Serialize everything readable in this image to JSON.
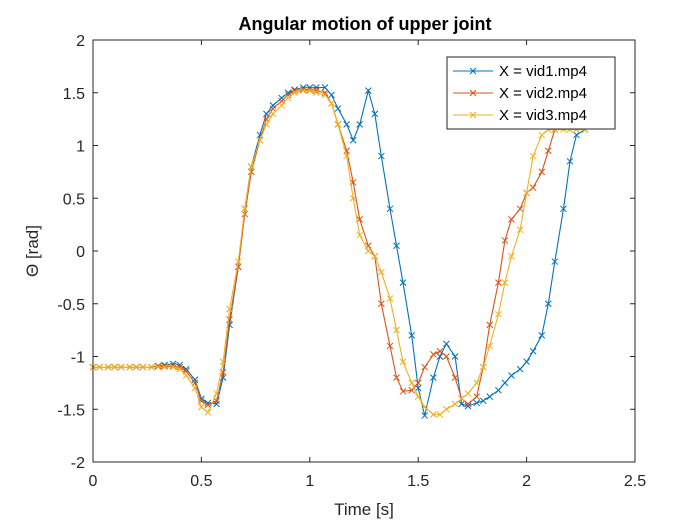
{
  "chart_data": {
    "type": "line",
    "title": "Angular motion of upper joint",
    "xlabel": "Time [s]",
    "ylabel": "Θ [rad]",
    "xlim": [
      0,
      2.5
    ],
    "ylim": [
      -2,
      2
    ],
    "xticks": [
      0,
      0.5,
      1,
      1.5,
      2,
      2.5
    ],
    "xtick_labels": [
      "0",
      "0.5",
      "1",
      "1.5",
      "2",
      "2.5"
    ],
    "yticks": [
      -2,
      -1.5,
      -1,
      -0.5,
      0,
      0.5,
      1,
      1.5,
      2
    ],
    "ytick_labels": [
      "-2",
      "-1.5",
      "-1",
      "-0.5",
      "0",
      "0.5",
      "1",
      "1.5",
      "2"
    ],
    "grid": false,
    "legend_position": "top-right",
    "series": [
      {
        "name": "X = vid1.mp4",
        "color": "#0072BD",
        "marker": "x",
        "x": [
          0.0,
          0.03,
          0.07,
          0.1,
          0.13,
          0.17,
          0.2,
          0.23,
          0.27,
          0.3,
          0.33,
          0.37,
          0.4,
          0.43,
          0.47,
          0.5,
          0.53,
          0.57,
          0.6,
          0.63,
          0.67,
          0.7,
          0.73,
          0.77,
          0.8,
          0.83,
          0.87,
          0.9,
          0.93,
          0.97,
          1.0,
          1.03,
          1.07,
          1.1,
          1.13,
          1.17,
          1.2,
          1.23,
          1.27,
          1.3,
          1.33,
          1.37,
          1.4,
          1.43,
          1.47,
          1.5,
          1.53,
          1.57,
          1.6,
          1.63,
          1.67,
          1.7,
          1.73,
          1.77,
          1.8,
          1.83,
          1.87,
          1.9,
          1.93,
          1.97,
          2.0,
          2.03,
          2.07,
          2.1,
          2.13,
          2.17,
          2.2,
          2.23,
          2.27
        ],
        "y": [
          -1.1,
          -1.1,
          -1.1,
          -1.1,
          -1.1,
          -1.1,
          -1.1,
          -1.1,
          -1.1,
          -1.09,
          -1.08,
          -1.07,
          -1.08,
          -1.12,
          -1.22,
          -1.4,
          -1.44,
          -1.45,
          -1.2,
          -0.7,
          -0.15,
          0.4,
          0.8,
          1.1,
          1.3,
          1.38,
          1.45,
          1.5,
          1.53,
          1.55,
          1.55,
          1.55,
          1.55,
          1.48,
          1.35,
          1.2,
          1.05,
          1.2,
          1.52,
          1.3,
          0.9,
          0.4,
          0.05,
          -0.3,
          -0.8,
          -1.3,
          -1.56,
          -1.2,
          -1.0,
          -0.88,
          -1.0,
          -1.45,
          -1.47,
          -1.44,
          -1.42,
          -1.38,
          -1.32,
          -1.25,
          -1.18,
          -1.12,
          -1.05,
          -0.95,
          -0.8,
          -0.5,
          -0.1,
          0.4,
          0.85,
          1.1,
          1.15
        ]
      },
      {
        "name": "X = vid2.mp4",
        "color": "#D95319",
        "marker": "x",
        "x": [
          0.0,
          0.03,
          0.07,
          0.1,
          0.13,
          0.17,
          0.2,
          0.23,
          0.27,
          0.3,
          0.33,
          0.37,
          0.4,
          0.43,
          0.47,
          0.5,
          0.53,
          0.57,
          0.6,
          0.63,
          0.67,
          0.7,
          0.73,
          0.77,
          0.8,
          0.83,
          0.87,
          0.9,
          0.93,
          0.97,
          1.0,
          1.03,
          1.07,
          1.1,
          1.13,
          1.17,
          1.2,
          1.23,
          1.27,
          1.3,
          1.33,
          1.37,
          1.4,
          1.43,
          1.47,
          1.5,
          1.53,
          1.57,
          1.6,
          1.63,
          1.67,
          1.7,
          1.73,
          1.77,
          1.8,
          1.83,
          1.87,
          1.9,
          1.93,
          1.97,
          2.0,
          2.03,
          2.07,
          2.1,
          2.13
        ],
        "y": [
          -1.1,
          -1.1,
          -1.1,
          -1.1,
          -1.1,
          -1.1,
          -1.1,
          -1.1,
          -1.1,
          -1.09,
          -1.09,
          -1.09,
          -1.1,
          -1.14,
          -1.25,
          -1.42,
          -1.46,
          -1.42,
          -1.15,
          -0.65,
          -0.15,
          0.35,
          0.75,
          1.05,
          1.25,
          1.35,
          1.42,
          1.48,
          1.52,
          1.53,
          1.53,
          1.52,
          1.5,
          1.4,
          1.2,
          0.95,
          0.65,
          0.3,
          0.05,
          -0.05,
          -0.5,
          -0.9,
          -1.2,
          -1.33,
          -1.32,
          -1.25,
          -1.1,
          -0.98,
          -0.95,
          -1.0,
          -1.2,
          -1.4,
          -1.45,
          -1.38,
          -1.1,
          -0.7,
          -0.3,
          0.1,
          0.3,
          0.4,
          0.55,
          0.6,
          0.75,
          0.95,
          1.15
        ]
      },
      {
        "name": "X = vid3.mp4",
        "color": "#EDB120",
        "marker": "x",
        "x": [
          0.0,
          0.03,
          0.07,
          0.1,
          0.13,
          0.17,
          0.2,
          0.23,
          0.27,
          0.3,
          0.33,
          0.37,
          0.4,
          0.43,
          0.47,
          0.5,
          0.53,
          0.57,
          0.6,
          0.63,
          0.67,
          0.7,
          0.73,
          0.77,
          0.8,
          0.83,
          0.87,
          0.9,
          0.93,
          0.97,
          1.0,
          1.03,
          1.07,
          1.1,
          1.13,
          1.17,
          1.2,
          1.23,
          1.27,
          1.3,
          1.33,
          1.37,
          1.4,
          1.43,
          1.47,
          1.5,
          1.53,
          1.57,
          1.6,
          1.63,
          1.67,
          1.7,
          1.73,
          1.77,
          1.8,
          1.83,
          1.87,
          1.9,
          1.93,
          1.97,
          2.0,
          2.03,
          2.07,
          2.1,
          2.13,
          2.17,
          2.2,
          2.23,
          2.27
        ],
        "y": [
          -1.1,
          -1.1,
          -1.1,
          -1.1,
          -1.1,
          -1.1,
          -1.1,
          -1.1,
          -1.1,
          -1.1,
          -1.1,
          -1.1,
          -1.12,
          -1.18,
          -1.3,
          -1.48,
          -1.53,
          -1.35,
          -1.05,
          -0.55,
          -0.1,
          0.4,
          0.8,
          1.05,
          1.2,
          1.3,
          1.38,
          1.45,
          1.5,
          1.52,
          1.52,
          1.5,
          1.48,
          1.4,
          1.2,
          0.9,
          0.5,
          0.15,
          0.0,
          -0.05,
          -0.2,
          -0.45,
          -0.75,
          -1.05,
          -1.25,
          -1.38,
          -1.48,
          -1.55,
          -1.55,
          -1.5,
          -1.45,
          -1.4,
          -1.35,
          -1.25,
          -1.1,
          -0.9,
          -0.6,
          -0.3,
          -0.05,
          0.2,
          0.55,
          0.9,
          1.1,
          1.15,
          1.15,
          1.15,
          1.15,
          1.15,
          1.15
        ]
      }
    ]
  }
}
